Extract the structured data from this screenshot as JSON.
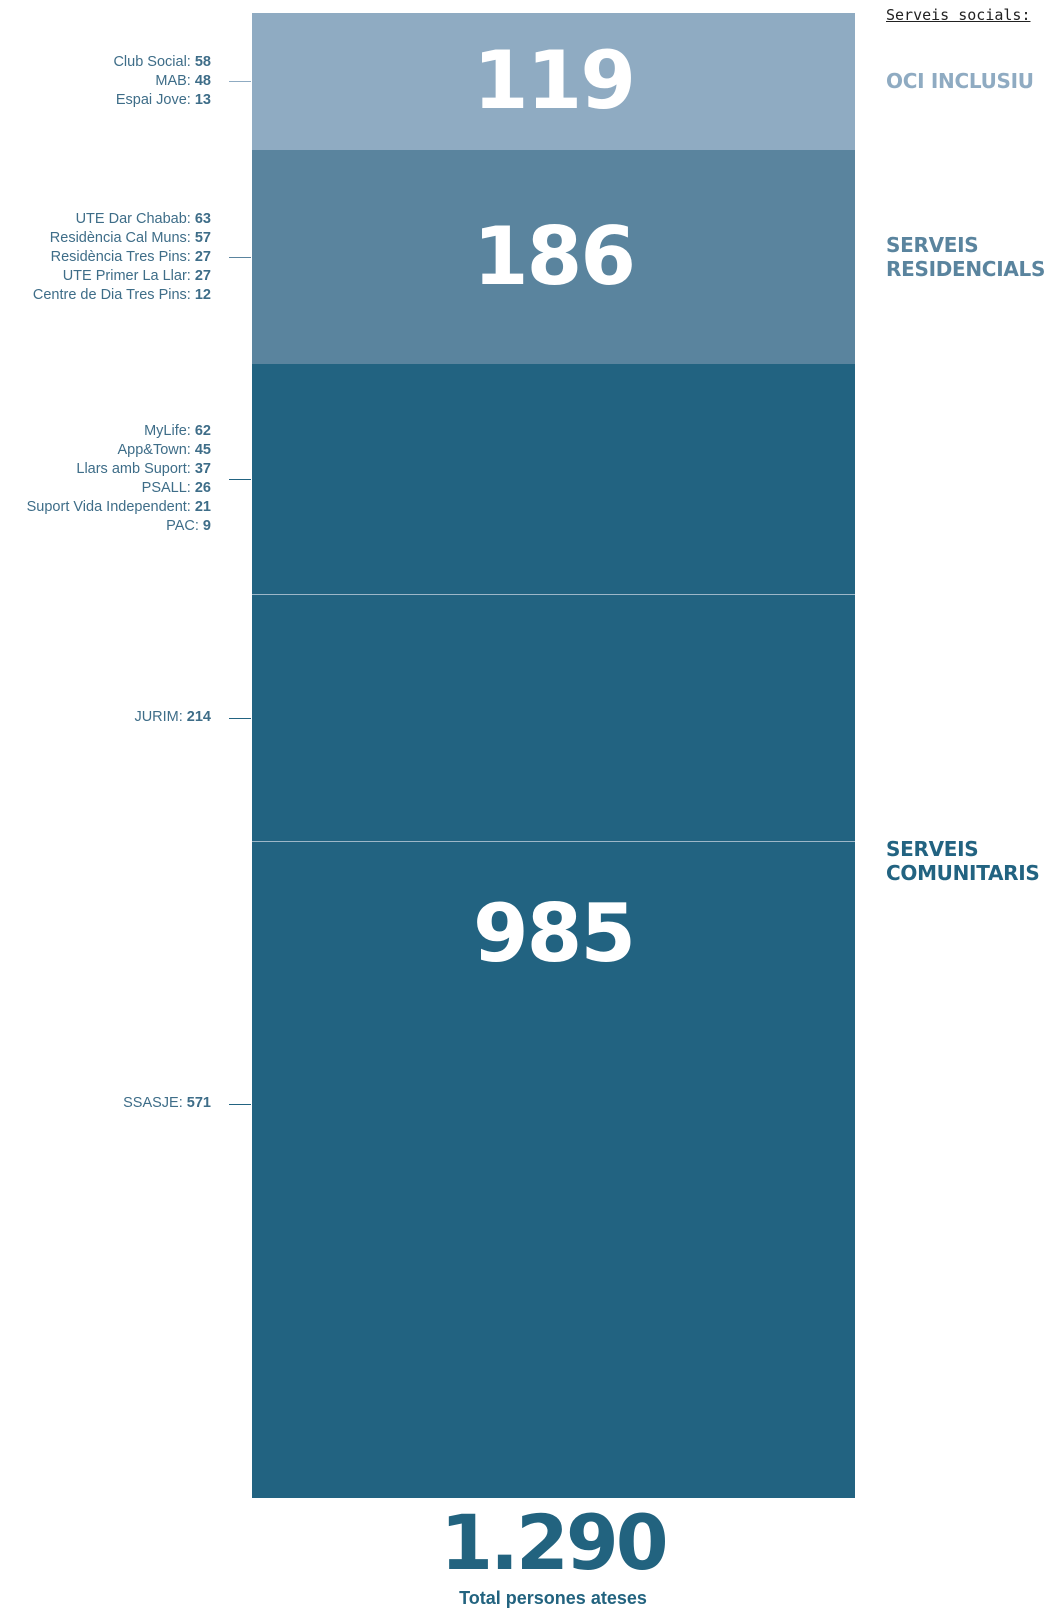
{
  "chart_data": {
    "type": "bar",
    "stacked": true,
    "title": "Serveis socials:",
    "groups": [
      {
        "name": "OCI INCLUSIU",
        "total": "119",
        "color": "#8fabc2",
        "label_color": "#8fabc2",
        "items": [
          {
            "name": "Club Social",
            "value": 58
          },
          {
            "name": "MAB",
            "value": 48
          },
          {
            "name": "Espai Jove",
            "value": 13
          }
        ]
      },
      {
        "name": "SERVEIS RESIDENCIALS",
        "name_lines": [
          "SERVEIS",
          "RESIDENCIALS"
        ],
        "total": "186",
        "color": "#5a849e",
        "label_color": "#5a849e",
        "items": [
          {
            "name": "UTE Dar Chabab",
            "value": 63
          },
          {
            "name": "Residència Cal Muns",
            "value": 57
          },
          {
            "name": "Residència Tres Pins",
            "value": 27
          },
          {
            "name": "UTE Primer La Llar",
            "value": 27
          },
          {
            "name": "Centre de Dia Tres Pins",
            "value": 12
          }
        ]
      },
      {
        "name": "SERVEIS COMUNITARIS",
        "name_lines": [
          "SERVEIS",
          "COMUNITARIS"
        ],
        "total": "985",
        "color": "#226381",
        "label_color": "#226381",
        "subgroups": [
          {
            "items": [
              {
                "name": "MyLife",
                "value": 62
              },
              {
                "name": "App&Town",
                "value": 45
              },
              {
                "name": "Llars amb Suport",
                "value": 37
              },
              {
                "name": "PSALL",
                "value": 26
              },
              {
                "name": "Suport Vida Independent",
                "value": 21
              },
              {
                "name": "PAC",
                "value": 9
              }
            ]
          },
          {
            "items": [
              {
                "name": "JURIM",
                "value": 214
              }
            ]
          },
          {
            "items": [
              {
                "name": "SSASJE",
                "value": 571
              }
            ]
          }
        ]
      }
    ],
    "total": "1.290",
    "total_label": "Total persones ateses"
  }
}
